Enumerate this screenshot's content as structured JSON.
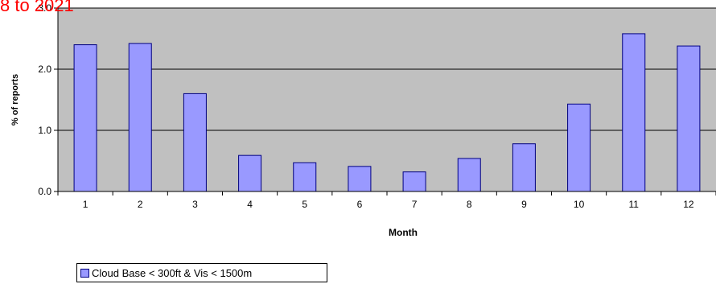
{
  "overlay_title": "8 to 2021",
  "chart_data": {
    "type": "bar",
    "categories": [
      "1",
      "2",
      "3",
      "4",
      "5",
      "6",
      "7",
      "8",
      "9",
      "10",
      "11",
      "12"
    ],
    "series": [
      {
        "name": "Cloud Base < 300ft & Vis < 1500m",
        "values": [
          2.4,
          2.42,
          1.6,
          0.59,
          0.47,
          0.41,
          0.32,
          0.54,
          0.78,
          1.43,
          2.58,
          2.38
        ]
      }
    ],
    "xlabel": "Month",
    "ylabel": "% of reports",
    "ylim": [
      0,
      3.0
    ],
    "yticks": [
      "0.0",
      "1.0",
      "2.0",
      "3.0"
    ],
    "grid": true,
    "legend_position": "bottom-left",
    "colors": {
      "bar_fill": "#9999ff",
      "bar_stroke": "#000080",
      "plot_background": "#c0c0c0",
      "gridline": "#000000",
      "overlay_text": "#ff0000"
    }
  }
}
